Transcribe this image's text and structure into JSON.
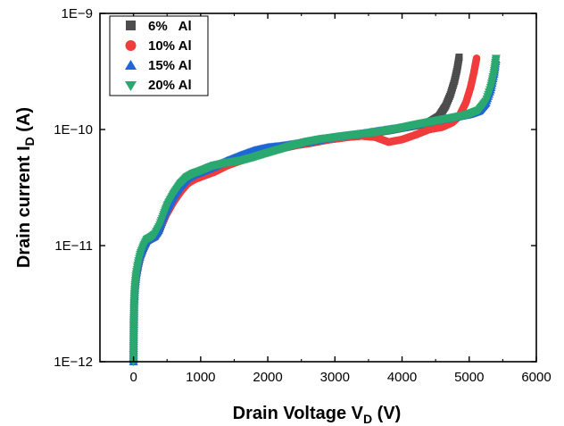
{
  "chart_data": {
    "type": "scatter",
    "xlabel": {
      "main": "Drain Voltage V",
      "sub": "D",
      "unit": " (V)"
    },
    "ylabel": {
      "main": "Drain current I",
      "sub": "D",
      "unit": " (A)"
    },
    "xlim": [
      -500,
      6000
    ],
    "ylim": [
      1e-12,
      1e-09
    ],
    "yscale": "log",
    "grid": false,
    "legend_position": "top-left",
    "x_ticks": [
      0,
      1000,
      2000,
      3000,
      4000,
      5000,
      6000
    ],
    "x_tick_labels": [
      "0",
      "1000",
      "2000",
      "3000",
      "4000",
      "5000",
      "6000"
    ],
    "y_ticks": [
      1e-12,
      1e-11,
      1e-10,
      1e-09
    ],
    "y_tick_labels": [
      "1E−12",
      "1E−11",
      "1E−10",
      "1E−9"
    ],
    "series": [
      {
        "name": "6%   Al",
        "color": "#4d4d4d",
        "marker": "square",
        "points": [
          [
            0,
            1e-12
          ],
          [
            2,
            1.5e-12
          ],
          [
            5,
            2.2e-12
          ],
          [
            10,
            3.2e-12
          ],
          [
            20,
            4.3e-12
          ],
          [
            40,
            5.5e-12
          ],
          [
            70,
            6.8e-12
          ],
          [
            100,
            8e-12
          ],
          [
            150,
            9.5e-12
          ],
          [
            200,
            1.1e-11
          ],
          [
            260,
            1.15e-11
          ],
          [
            320,
            1.2e-11
          ],
          [
            380,
            1.35e-11
          ],
          [
            450,
            1.7e-11
          ],
          [
            500,
            2e-11
          ],
          [
            600,
            2.5e-11
          ],
          [
            700,
            3.1e-11
          ],
          [
            800,
            3.6e-11
          ],
          [
            900,
            3.9e-11
          ],
          [
            1000,
            4.1e-11
          ],
          [
            1200,
            4.5e-11
          ],
          [
            1400,
            5e-11
          ],
          [
            1600,
            5.5e-11
          ],
          [
            1800,
            6e-11
          ],
          [
            2000,
            6.5e-11
          ],
          [
            2200,
            6.9e-11
          ],
          [
            2400,
            7.3e-11
          ],
          [
            2600,
            7.6e-11
          ],
          [
            2800,
            8e-11
          ],
          [
            3000,
            8.4e-11
          ],
          [
            3200,
            8.7e-11
          ],
          [
            3400,
            9e-11
          ],
          [
            3600,
            9.4e-11
          ],
          [
            3800,
            9.8e-11
          ],
          [
            4000,
            1.03e-10
          ],
          [
            4200,
            1.08e-10
          ],
          [
            4400,
            1.15e-10
          ],
          [
            4550,
            1.3e-10
          ],
          [
            4650,
            1.6e-10
          ],
          [
            4720,
            2e-10
          ],
          [
            4780,
            2.6e-10
          ],
          [
            4820,
            3.3e-10
          ],
          [
            4850,
            4.2e-10
          ]
        ]
      },
      {
        "name": "10% Al",
        "color": "#f03c3c",
        "marker": "circle",
        "points": [
          [
            0,
            1e-12
          ],
          [
            2,
            1.5e-12
          ],
          [
            5,
            2.2e-12
          ],
          [
            10,
            3.2e-12
          ],
          [
            20,
            4.3e-12
          ],
          [
            40,
            5.5e-12
          ],
          [
            70,
            6.8e-12
          ],
          [
            100,
            8e-12
          ],
          [
            150,
            9.5e-12
          ],
          [
            200,
            1.1e-11
          ],
          [
            260,
            1.15e-11
          ],
          [
            320,
            1.2e-11
          ],
          [
            380,
            1.35e-11
          ],
          [
            450,
            1.7e-11
          ],
          [
            500,
            1.9e-11
          ],
          [
            600,
            2.4e-11
          ],
          [
            700,
            2.9e-11
          ],
          [
            800,
            3.4e-11
          ],
          [
            900,
            3.7e-11
          ],
          [
            1000,
            3.9e-11
          ],
          [
            1200,
            4.3e-11
          ],
          [
            1400,
            4.9e-11
          ],
          [
            1600,
            5.4e-11
          ],
          [
            1800,
            6e-11
          ],
          [
            2000,
            6.5e-11
          ],
          [
            2200,
            6.9e-11
          ],
          [
            2400,
            7.3e-11
          ],
          [
            2600,
            7.6e-11
          ],
          [
            2800,
            8e-11
          ],
          [
            3000,
            8.3e-11
          ],
          [
            3200,
            8.6e-11
          ],
          [
            3400,
            8.8e-11
          ],
          [
            3600,
            8.6e-11
          ],
          [
            3800,
            7.8e-11
          ],
          [
            4000,
            8.2e-11
          ],
          [
            4200,
            9e-11
          ],
          [
            4400,
            1e-10
          ],
          [
            4600,
            1.05e-10
          ],
          [
            4750,
            1.15e-10
          ],
          [
            4850,
            1.3e-10
          ],
          [
            4950,
            1.7e-10
          ],
          [
            5020,
            2.3e-10
          ],
          [
            5070,
            3.1e-10
          ],
          [
            5110,
            4.1e-10
          ]
        ]
      },
      {
        "name": "15% Al",
        "color": "#1f66d6",
        "marker": "triangle-up",
        "points": [
          [
            0,
            1e-12
          ],
          [
            2,
            1.5e-12
          ],
          [
            5,
            2.2e-12
          ],
          [
            10,
            3.2e-12
          ],
          [
            20,
            4.3e-12
          ],
          [
            40,
            5.6e-12
          ],
          [
            70,
            7e-12
          ],
          [
            100,
            8.3e-12
          ],
          [
            150,
            9.8e-12
          ],
          [
            200,
            1.12e-11
          ],
          [
            260,
            1.17e-11
          ],
          [
            320,
            1.23e-11
          ],
          [
            380,
            1.4e-11
          ],
          [
            450,
            1.8e-11
          ],
          [
            500,
            2.1e-11
          ],
          [
            600,
            2.7e-11
          ],
          [
            700,
            3.3e-11
          ],
          [
            800,
            3.8e-11
          ],
          [
            900,
            4.1e-11
          ],
          [
            1000,
            4.3e-11
          ],
          [
            1200,
            4.8e-11
          ],
          [
            1400,
            5.4e-11
          ],
          [
            1600,
            6e-11
          ],
          [
            1800,
            6.6e-11
          ],
          [
            2000,
            7e-11
          ],
          [
            2200,
            7.2e-11
          ],
          [
            2400,
            7.5e-11
          ],
          [
            2600,
            7.8e-11
          ],
          [
            2800,
            8.2e-11
          ],
          [
            3000,
            8.6e-11
          ],
          [
            3200,
            8.9e-11
          ],
          [
            3400,
            9.2e-11
          ],
          [
            3600,
            9.6e-11
          ],
          [
            3800,
            1e-10
          ],
          [
            4000,
            1.04e-10
          ],
          [
            4200,
            1.1e-10
          ],
          [
            4400,
            1.16e-10
          ],
          [
            4600,
            1.22e-10
          ],
          [
            4800,
            1.28e-10
          ],
          [
            5000,
            1.35e-10
          ],
          [
            5150,
            1.45e-10
          ],
          [
            5250,
            1.7e-10
          ],
          [
            5320,
            2.2e-10
          ],
          [
            5370,
            3e-10
          ],
          [
            5400,
            4e-10
          ]
        ]
      },
      {
        "name": "20% Al",
        "color": "#2aa870",
        "marker": "triangle-down",
        "points": [
          [
            0,
            1e-12
          ],
          [
            2,
            1.5e-12
          ],
          [
            5,
            2.2e-12
          ],
          [
            10,
            3.2e-12
          ],
          [
            20,
            4.4e-12
          ],
          [
            40,
            5.7e-12
          ],
          [
            70,
            7.1e-12
          ],
          [
            100,
            8.4e-12
          ],
          [
            150,
            9.9e-12
          ],
          [
            200,
            1.13e-11
          ],
          [
            260,
            1.18e-11
          ],
          [
            320,
            1.25e-11
          ],
          [
            380,
            1.45e-11
          ],
          [
            450,
            1.85e-11
          ],
          [
            500,
            2.2e-11
          ],
          [
            600,
            2.8e-11
          ],
          [
            700,
            3.4e-11
          ],
          [
            800,
            3.9e-11
          ],
          [
            900,
            4.2e-11
          ],
          [
            1000,
            4.4e-11
          ],
          [
            1200,
            4.9e-11
          ],
          [
            1400,
            5.2e-11
          ],
          [
            1600,
            5.4e-11
          ],
          [
            1800,
            5.8e-11
          ],
          [
            2000,
            6.3e-11
          ],
          [
            2200,
            6.8e-11
          ],
          [
            2400,
            7.4e-11
          ],
          [
            2600,
            7.9e-11
          ],
          [
            2800,
            8.3e-11
          ],
          [
            3000,
            8.6e-11
          ],
          [
            3200,
            8.9e-11
          ],
          [
            3400,
            9.2e-11
          ],
          [
            3600,
            9.5e-11
          ],
          [
            3800,
            9.9e-11
          ],
          [
            4000,
            1.04e-10
          ],
          [
            4200,
            1.1e-10
          ],
          [
            4400,
            1.16e-10
          ],
          [
            4600,
            1.22e-10
          ],
          [
            4800,
            1.28e-10
          ],
          [
            5000,
            1.36e-10
          ],
          [
            5150,
            1.47e-10
          ],
          [
            5250,
            1.75e-10
          ],
          [
            5320,
            2.3e-10
          ],
          [
            5370,
            3.1e-10
          ],
          [
            5400,
            4.1e-10
          ]
        ]
      }
    ]
  }
}
